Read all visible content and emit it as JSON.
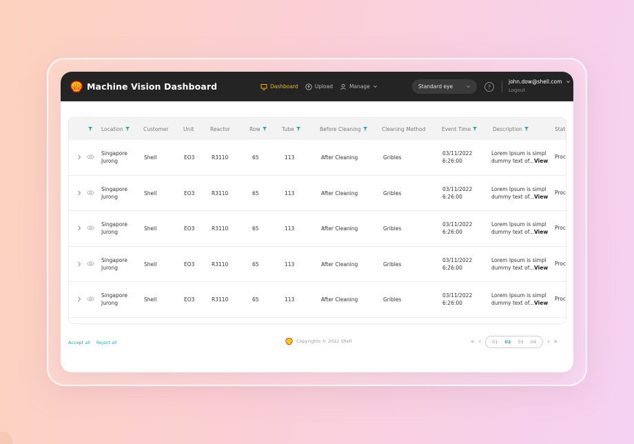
{
  "app": {
    "title": "Machine Vision Dashboard"
  },
  "nav": [
    {
      "label": "Dashboard",
      "icon": "monitor-icon",
      "active": true
    },
    {
      "label": "Upload",
      "icon": "upload-icon",
      "active": false
    },
    {
      "label": "Manage",
      "icon": "user-icon",
      "active": false
    }
  ],
  "eye_select": {
    "value": "Standard eye"
  },
  "help": {
    "glyph": "?"
  },
  "user": {
    "email": "john.dow@shell.com",
    "logout": "Logout"
  },
  "table": {
    "headers": {
      "location": "Location",
      "customer": "Customer",
      "unit": "Unit",
      "reactor": "Reactor",
      "row": "Row",
      "tube": "Tube",
      "before_cleaning": "Before Cleaning",
      "cleaning_method": "Cleaning Method",
      "event_time": "Event Time",
      "description": "Description",
      "status": "Status"
    },
    "rows": [
      {
        "location_1": "Singapore",
        "location_2": "Jurong",
        "customer": "Shell",
        "unit": "EO3",
        "reactor": "R3110",
        "row": "65",
        "tube": "113",
        "before_cleaning": "After Cleaning",
        "cleaning_method": "Gribles",
        "event_date": "03/11/2022",
        "event_time": "6:26:00",
        "description_1": "Lorem Ipsum is simpl",
        "description_2": "dummy text of...",
        "view": "View",
        "status": "Proce"
      },
      {
        "location_1": "Singapore",
        "location_2": "Jurong",
        "customer": "Shell",
        "unit": "EO3",
        "reactor": "R3110",
        "row": "65",
        "tube": "113",
        "before_cleaning": "After Cleaning",
        "cleaning_method": "Gribles",
        "event_date": "03/11/2022",
        "event_time": "6:26:00",
        "description_1": "Lorem Ipsum is simpl",
        "description_2": "dummy text of...",
        "view": "View",
        "status": "Proce"
      },
      {
        "location_1": "Singapore",
        "location_2": "Jurong",
        "customer": "Shell",
        "unit": "EO3",
        "reactor": "R3110",
        "row": "65",
        "tube": "113",
        "before_cleaning": "After Cleaning",
        "cleaning_method": "Gribles",
        "event_date": "03/11/2022",
        "event_time": "6:26:00",
        "description_1": "Lorem Ipsum is simpl",
        "description_2": "dummy text of...",
        "view": "View",
        "status": "Proce"
      },
      {
        "location_1": "Singapore",
        "location_2": "Jurong",
        "customer": "Shell",
        "unit": "EO3",
        "reactor": "R3110",
        "row": "65",
        "tube": "113",
        "before_cleaning": "After Cleaning",
        "cleaning_method": "Gribles",
        "event_date": "03/11/2022",
        "event_time": "6:26:00",
        "description_1": "Lorem Ipsum is simpl",
        "description_2": "dummy text of...",
        "view": "View",
        "status": "Proce"
      },
      {
        "location_1": "Singapore",
        "location_2": "Jurong",
        "customer": "Shell",
        "unit": "EO3",
        "reactor": "R3110",
        "row": "65",
        "tube": "113",
        "before_cleaning": "After Cleaning",
        "cleaning_method": "Gribles",
        "event_date": "03/11/2022",
        "event_time": "6:26:00",
        "description_1": "Lorem Ipsum is simpl",
        "description_2": "dummy text of...",
        "view": "View",
        "status": "Proce"
      }
    ]
  },
  "footer": {
    "accept_all": "Accept all",
    "reject_all": "Reject all",
    "copyright": "Copyrights © 2022 Shell"
  },
  "pagination": {
    "pages": [
      "01",
      "02",
      "03",
      "04"
    ],
    "active": "02"
  },
  "colors": {
    "accent": "#2aa7b2",
    "nav_active": "#f5b800",
    "topbar": "#242424",
    "shell_yellow": "#fbce07",
    "shell_red": "#dd1d21"
  }
}
